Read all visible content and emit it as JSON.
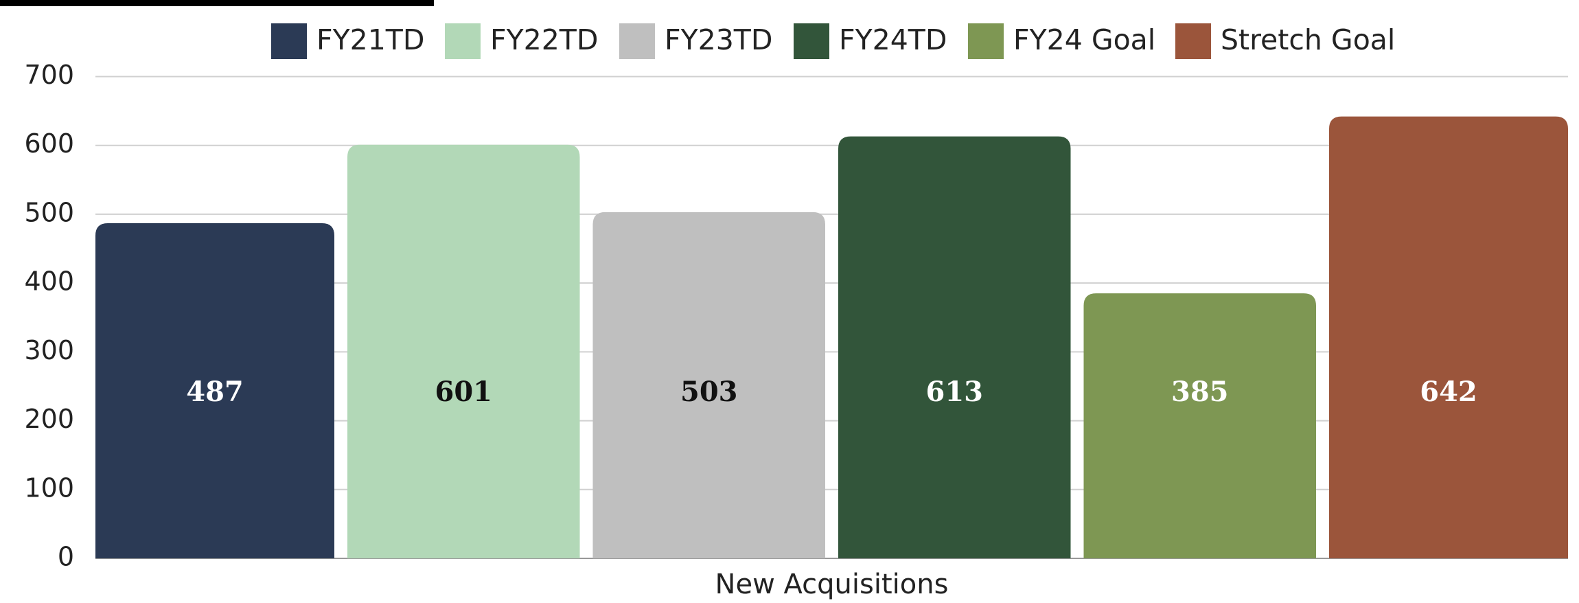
{
  "chart_data": {
    "type": "bar",
    "categories": [
      "New Acquisitions"
    ],
    "series": [
      {
        "name": "FY21TD",
        "color": "#2b3a55",
        "values": [
          487
        ]
      },
      {
        "name": "FY22TD",
        "color": "#b2d8b7",
        "values": [
          601
        ]
      },
      {
        "name": "FY23TD",
        "color": "#bfbfbf",
        "values": [
          503
        ]
      },
      {
        "name": "FY24TD",
        "color": "#32553a",
        "values": [
          613
        ]
      },
      {
        "name": "FY24 Goal",
        "color": "#7e9753",
        "values": [
          385
        ]
      },
      {
        "name": "Stretch Goal",
        "color": "#9b553b",
        "values": [
          642
        ]
      }
    ],
    "ylim": [
      0,
      700
    ],
    "yticks": [
      0,
      100,
      200,
      300,
      400,
      500,
      600,
      700
    ],
    "grid": true,
    "legend": "top"
  }
}
